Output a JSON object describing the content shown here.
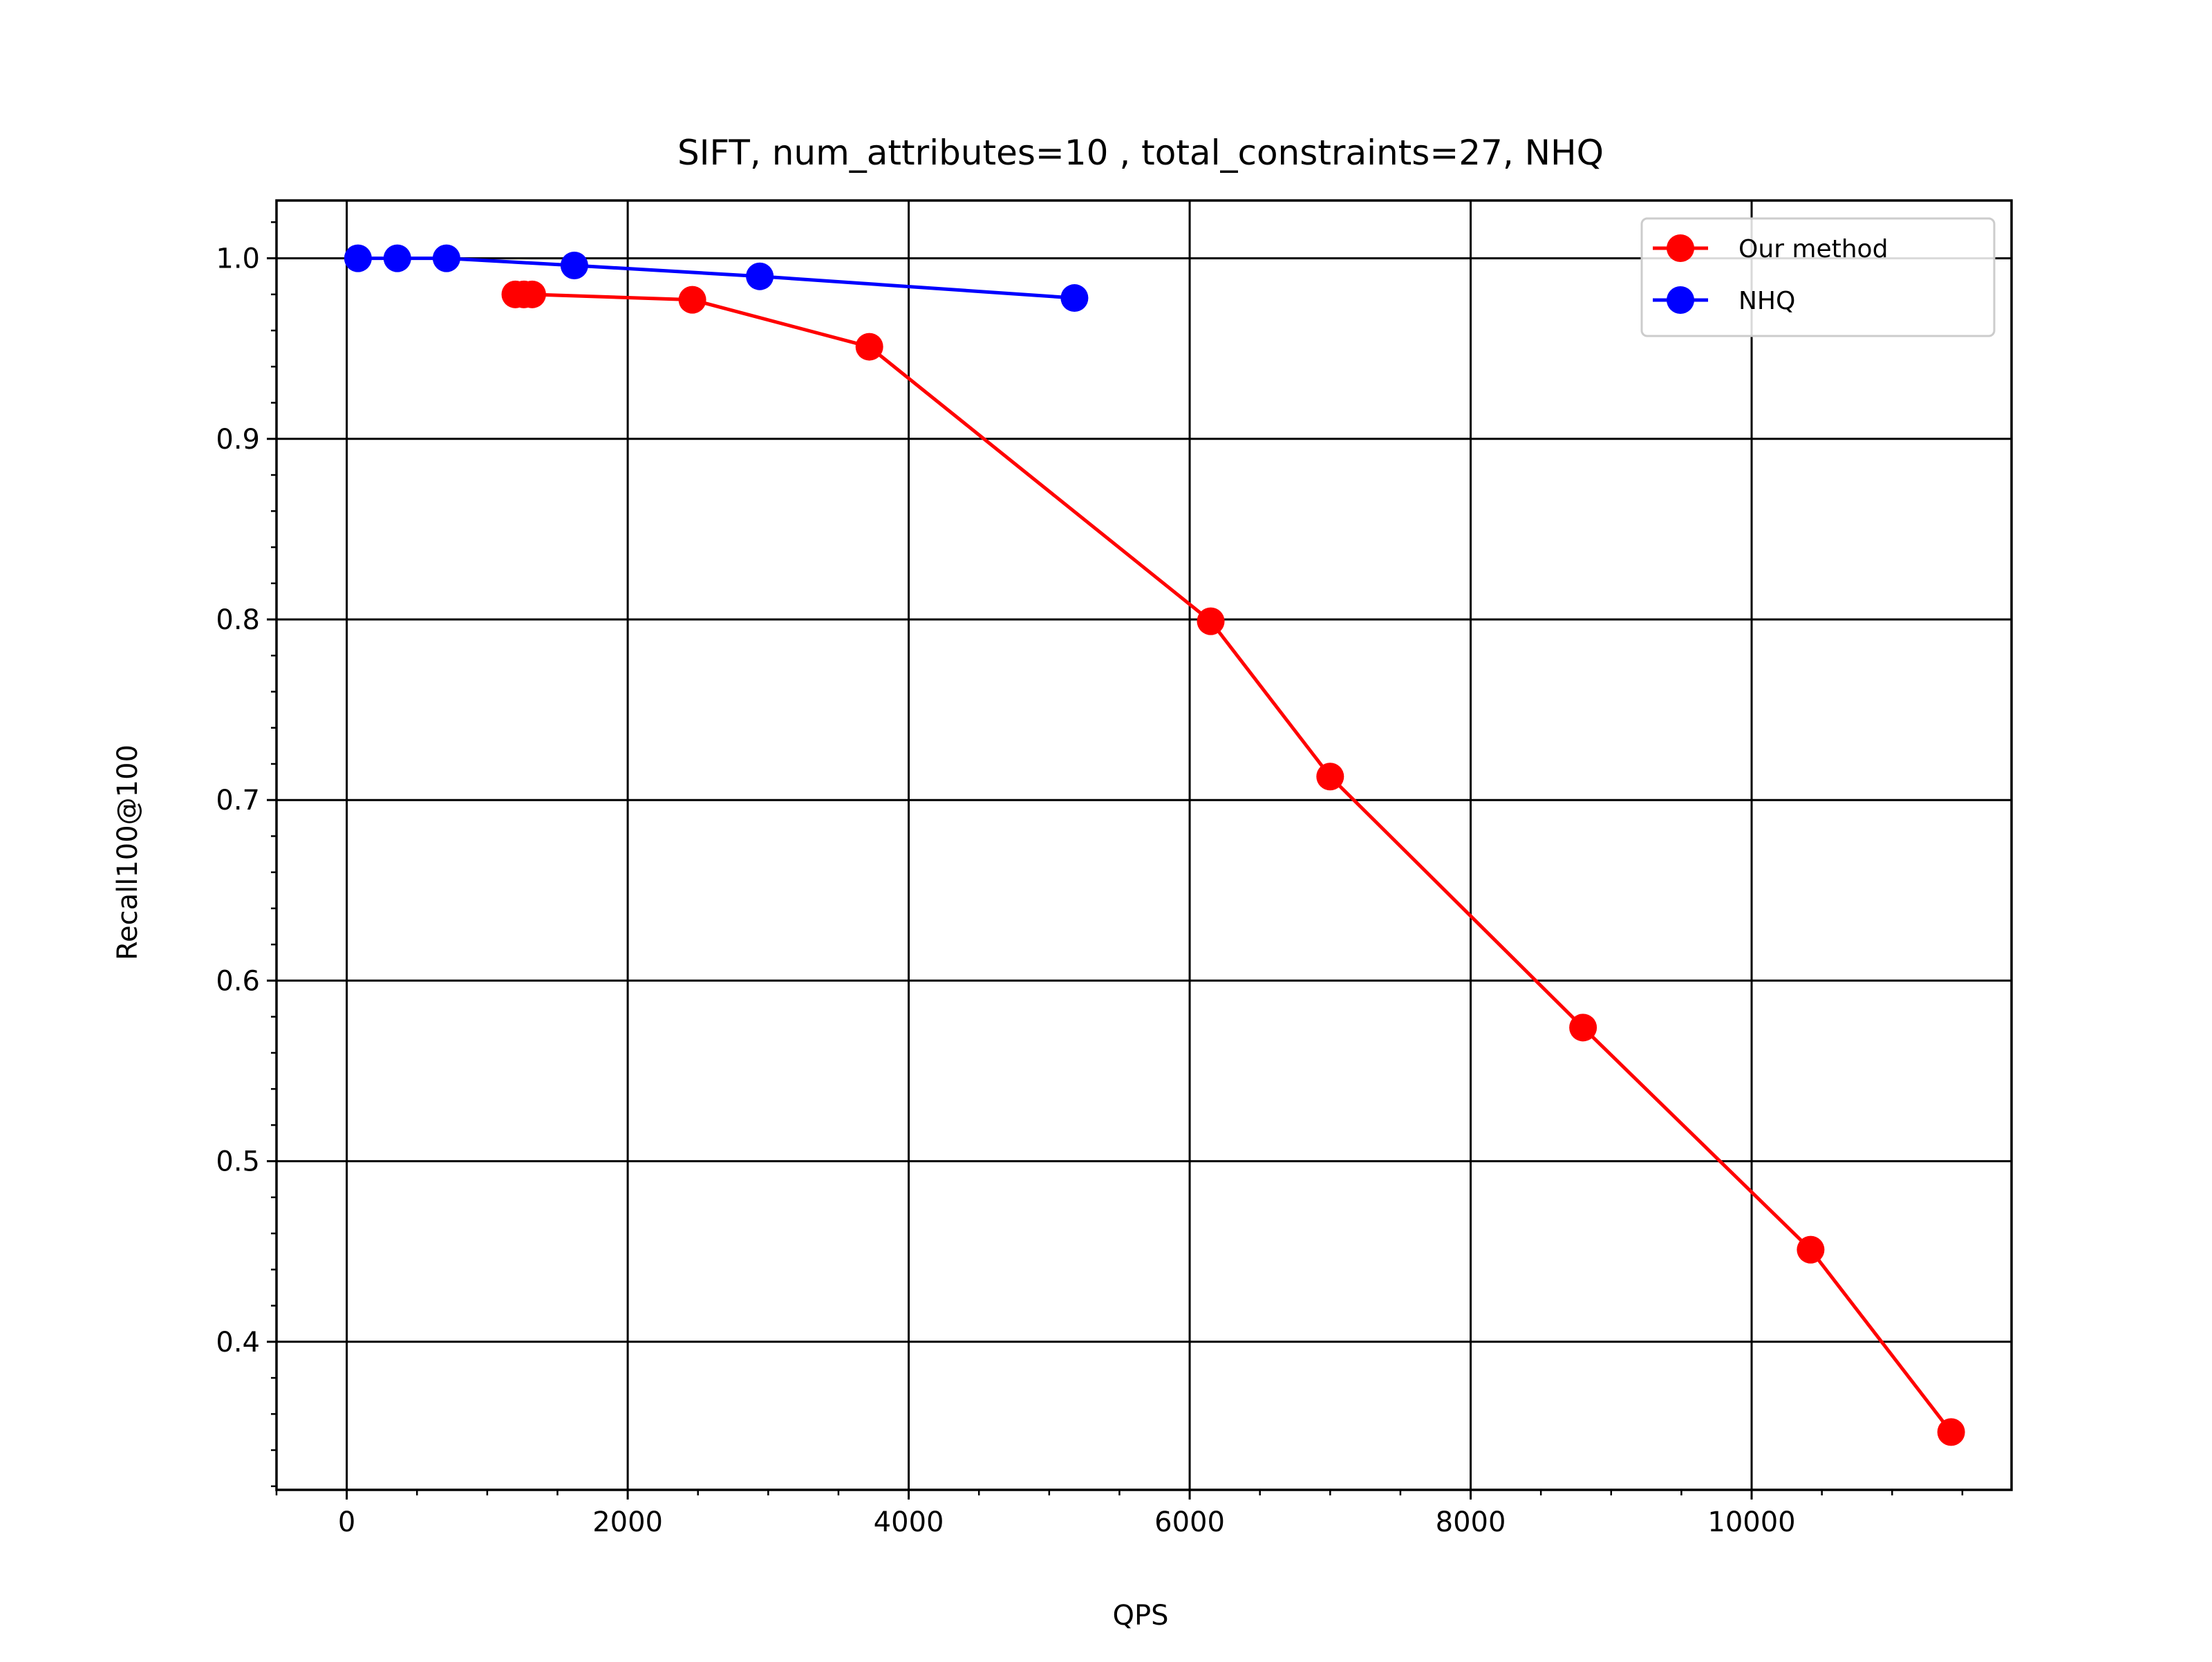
{
  "chart_data": {
    "type": "line",
    "title": "SIFT, num_attributes=10 , total_constraints=27, NHQ",
    "xlabel": "QPS",
    "ylabel": "Recall100@100",
    "xlim": [
      -500,
      11850
    ],
    "ylim": [
      0.318,
      1.032
    ],
    "xticks": [
      0,
      2000,
      4000,
      6000,
      8000,
      10000
    ],
    "xtick_labels": [
      "0",
      "2000",
      "4000",
      "6000",
      "8000",
      "10000"
    ],
    "yticks": [
      0.4,
      0.5,
      0.6,
      0.7,
      0.8,
      0.9,
      1.0
    ],
    "ytick_labels": [
      "0.4",
      "0.5",
      "0.6",
      "0.7",
      "0.8",
      "0.9",
      "1.0"
    ],
    "grid": true,
    "legend_position": "top-right",
    "series": [
      {
        "name": "Our method",
        "color": "#ff0000",
        "x": [
          1200,
          1260,
          1320,
          2460,
          3720,
          6150,
          7000,
          8800,
          10420,
          11420
        ],
        "y": [
          0.98,
          0.98,
          0.98,
          0.977,
          0.951,
          0.799,
          0.713,
          0.574,
          0.451,
          0.35
        ]
      },
      {
        "name": "NHQ",
        "color": "#0000ff",
        "x": [
          80,
          360,
          710,
          1620,
          2940,
          5180
        ],
        "y": [
          1.0,
          1.0,
          1.0,
          0.996,
          0.99,
          0.978
        ]
      }
    ]
  }
}
